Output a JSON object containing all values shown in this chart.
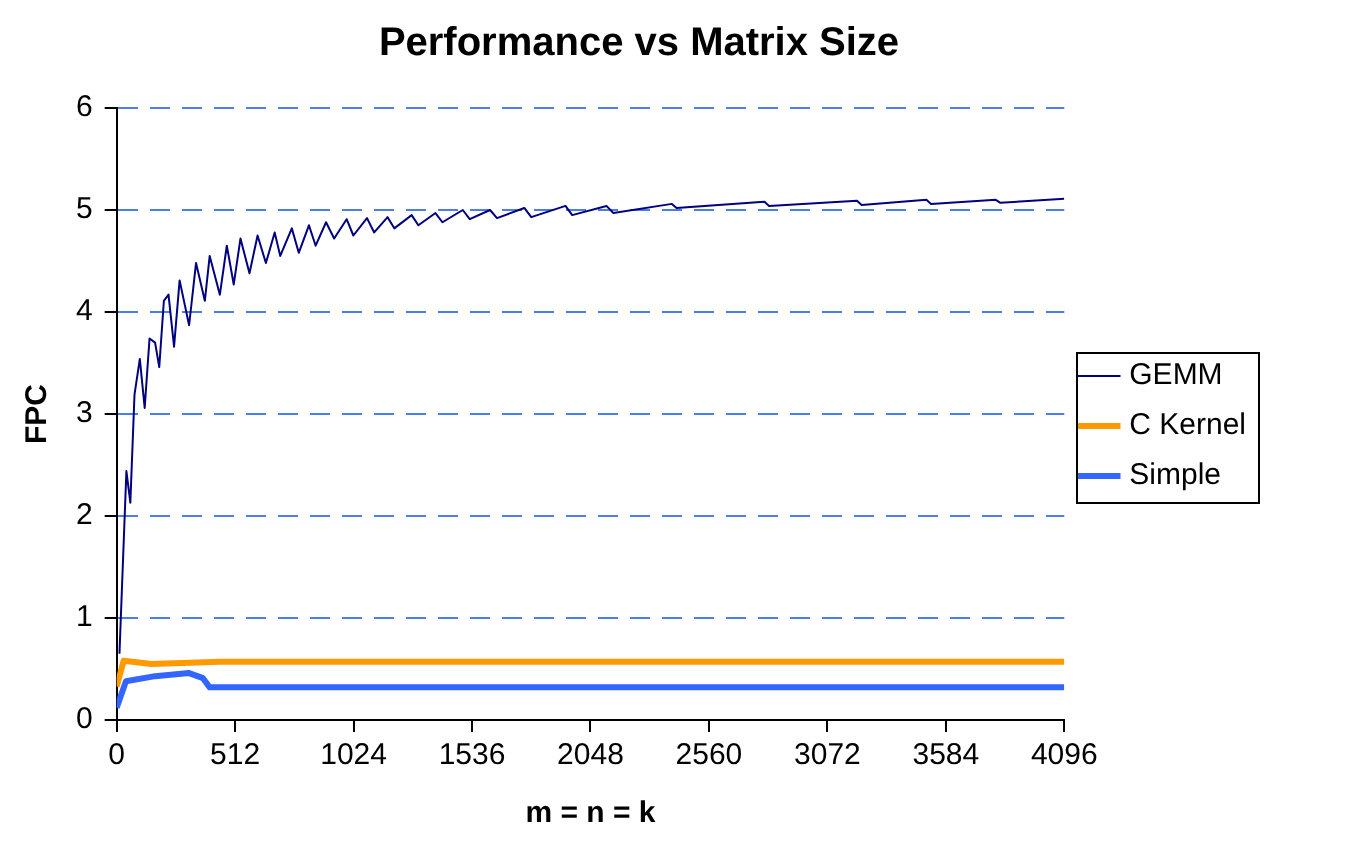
{
  "chart_data": {
    "type": "line",
    "title": "Performance vs Matrix Size",
    "xlabel": "m = n = k",
    "ylabel": "FPC",
    "xlim": [
      0,
      4096
    ],
    "xticks": [
      0,
      512,
      1024,
      1536,
      2048,
      2560,
      3072,
      3584,
      4096
    ],
    "ylim": [
      0,
      6
    ],
    "yticks": [
      0,
      1,
      2,
      3,
      4,
      5,
      6
    ],
    "grid": "y",
    "legend": "right",
    "marker": "none",
    "series": [
      {
        "name": "GEMM",
        "color": "#000080",
        "x": [
          12,
          42,
          59,
          77,
          100,
          121,
          142,
          166,
          184,
          204,
          224,
          248,
          272,
          313,
          343,
          381,
          402,
          446,
          476,
          506,
          535,
          574,
          609,
          645,
          683,
          707,
          757,
          787,
          831,
          860,
          905,
          940,
          994,
          1023,
          1082,
          1113,
          1171,
          1200,
          1275,
          1304,
          1378,
          1408,
          1496,
          1526,
          1614,
          1644,
          1762,
          1792,
          1940,
          1969,
          2117,
          2147,
          2400,
          2420,
          2800,
          2820,
          3200,
          3220,
          3500,
          3520,
          3800,
          3820,
          4096
        ],
        "values": [
          0.65,
          2.44,
          2.13,
          3.19,
          3.54,
          3.06,
          3.74,
          3.7,
          3.46,
          4.11,
          4.17,
          3.66,
          4.31,
          3.87,
          4.48,
          4.11,
          4.55,
          4.17,
          4.65,
          4.27,
          4.72,
          4.38,
          4.75,
          4.48,
          4.78,
          4.55,
          4.82,
          4.58,
          4.85,
          4.65,
          4.88,
          4.72,
          4.91,
          4.75,
          4.92,
          4.78,
          4.93,
          4.82,
          4.95,
          4.85,
          4.97,
          4.88,
          5.0,
          4.91,
          5.0,
          4.92,
          5.02,
          4.93,
          5.04,
          4.95,
          5.04,
          4.97,
          5.06,
          5.02,
          5.08,
          5.04,
          5.09,
          5.05,
          5.1,
          5.06,
          5.1,
          5.07,
          5.11
        ]
      },
      {
        "name": "C Kernel",
        "color": "#ff9900",
        "x": [
          0,
          30,
          150,
          446,
          1000,
          4096
        ],
        "values": [
          0.33,
          0.58,
          0.55,
          0.57,
          0.57,
          0.57
        ]
      },
      {
        "name": "Simple",
        "color": "#3366ff",
        "x": [
          0,
          40,
          166,
          313,
          373,
          402,
          1000,
          4096
        ],
        "values": [
          0.12,
          0.38,
          0.43,
          0.46,
          0.41,
          0.32,
          0.32,
          0.32
        ]
      }
    ]
  }
}
